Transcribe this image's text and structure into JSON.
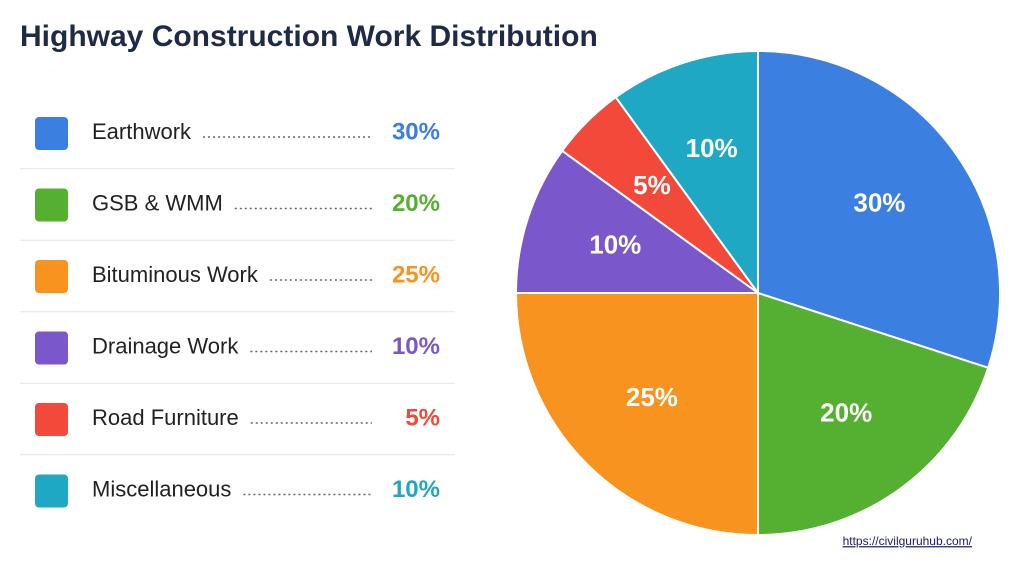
{
  "chart_data": {
    "type": "pie",
    "title": "Highway Construction Work Distribution",
    "categories": [
      "Earthwork",
      "GSB & WMM",
      "Bituminous Work",
      "Drainage Work",
      "Road Furniture",
      "Miscellaneous"
    ],
    "values": [
      30,
      20,
      25,
      10,
      5,
      10
    ],
    "value_labels": [
      "30%",
      "20%",
      "25%",
      "10%",
      "5%",
      "10%"
    ],
    "colors": [
      "#3b7fe0",
      "#55b031",
      "#f7931e",
      "#7b57cc",
      "#f2493a",
      "#1fa8c4"
    ],
    "source": "https://civilguruhub.com/"
  }
}
